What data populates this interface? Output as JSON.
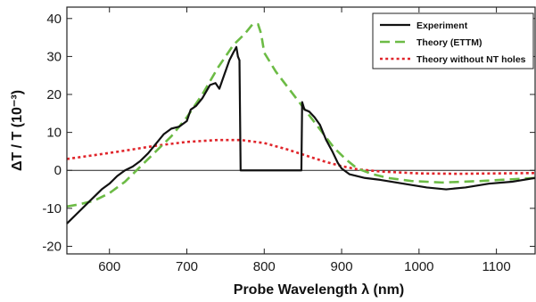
{
  "chart_data": {
    "type": "line",
    "title": "",
    "xlabel": "Probe Wavelength λ (nm)",
    "ylabel": "ΔT / T (10⁻³)",
    "xlim": [
      545,
      1150
    ],
    "ylim": [
      -22,
      43
    ],
    "xticks": [
      600,
      700,
      800,
      900,
      1000,
      1100
    ],
    "yticks": [
      -20,
      -10,
      0,
      10,
      20,
      30,
      40
    ],
    "xtick_labels": [
      "600",
      "700",
      "800",
      "900",
      "1000",
      "1100"
    ],
    "ytick_labels": [
      "-20",
      "-10",
      "0",
      "10",
      "20",
      "30",
      "40"
    ],
    "zero_line": true,
    "grid": false,
    "legend_position": "top-right",
    "series": [
      {
        "name": "Experiment",
        "color": "#111111",
        "style": "solid",
        "points": [
          [
            545,
            -14
          ],
          [
            560,
            -11
          ],
          [
            575,
            -8
          ],
          [
            590,
            -5
          ],
          [
            600,
            -3.5
          ],
          [
            610,
            -1.5
          ],
          [
            620,
            0
          ],
          [
            630,
            1
          ],
          [
            640,
            2.5
          ],
          [
            650,
            4.5
          ],
          [
            660,
            7
          ],
          [
            670,
            9.5
          ],
          [
            680,
            11
          ],
          [
            690,
            11.5
          ],
          [
            700,
            13
          ],
          [
            705,
            16
          ],
          [
            712,
            17
          ],
          [
            720,
            19
          ],
          [
            730,
            22.5
          ],
          [
            737,
            23
          ],
          [
            742,
            21.5
          ],
          [
            748,
            25
          ],
          [
            755,
            29
          ],
          [
            760,
            31
          ],
          [
            764,
            32.5
          ],
          [
            766,
            30
          ],
          [
            768,
            29
          ],
          [
            769.5,
            0
          ],
          [
            848,
            0
          ],
          [
            849,
            18
          ],
          [
            852,
            16
          ],
          [
            858,
            15.5
          ],
          [
            865,
            14
          ],
          [
            872,
            12
          ],
          [
            880,
            8
          ],
          [
            888,
            5
          ],
          [
            895,
            2
          ],
          [
            900,
            0.5
          ],
          [
            910,
            -1
          ],
          [
            930,
            -2
          ],
          [
            950,
            -2.5
          ],
          [
            980,
            -3.5
          ],
          [
            1010,
            -4.5
          ],
          [
            1035,
            -5
          ],
          [
            1060,
            -4.5
          ],
          [
            1090,
            -3.5
          ],
          [
            1120,
            -3
          ],
          [
            1150,
            -2
          ]
        ]
      },
      {
        "name": "Theory (ETTM)",
        "color": "#6cbb45",
        "style": "dashed",
        "points": [
          [
            545,
            -9.5
          ],
          [
            560,
            -9
          ],
          [
            580,
            -8
          ],
          [
            600,
            -6
          ],
          [
            620,
            -3
          ],
          [
            640,
            1
          ],
          [
            660,
            5
          ],
          [
            680,
            9
          ],
          [
            700,
            14
          ],
          [
            720,
            20
          ],
          [
            740,
            27
          ],
          [
            760,
            33
          ],
          [
            775,
            36
          ],
          [
            785,
            38.5
          ],
          [
            792,
            38.5
          ],
          [
            796,
            36
          ],
          [
            800,
            31
          ],
          [
            815,
            26
          ],
          [
            830,
            22
          ],
          [
            845,
            18
          ],
          [
            860,
            14
          ],
          [
            875,
            10
          ],
          [
            890,
            6
          ],
          [
            905,
            3
          ],
          [
            920,
            0.5
          ],
          [
            940,
            -1
          ],
          [
            960,
            -2
          ],
          [
            990,
            -2.8
          ],
          [
            1030,
            -3.2
          ],
          [
            1080,
            -2.8
          ],
          [
            1150,
            -2
          ]
        ]
      },
      {
        "name": "Theory without NT holes",
        "color": "#e0242a",
        "style": "dotted",
        "points": [
          [
            545,
            3
          ],
          [
            580,
            4
          ],
          [
            620,
            5.2
          ],
          [
            660,
            6.5
          ],
          [
            700,
            7.5
          ],
          [
            740,
            8
          ],
          [
            770,
            8
          ],
          [
            800,
            7.2
          ],
          [
            830,
            5.5
          ],
          [
            860,
            3.5
          ],
          [
            880,
            2.2
          ],
          [
            900,
            1.1
          ],
          [
            920,
            0.3
          ],
          [
            950,
            -0.3
          ],
          [
            1000,
            -0.8
          ],
          [
            1050,
            -0.9
          ],
          [
            1100,
            -0.8
          ],
          [
            1150,
            -0.7
          ]
        ]
      }
    ]
  }
}
